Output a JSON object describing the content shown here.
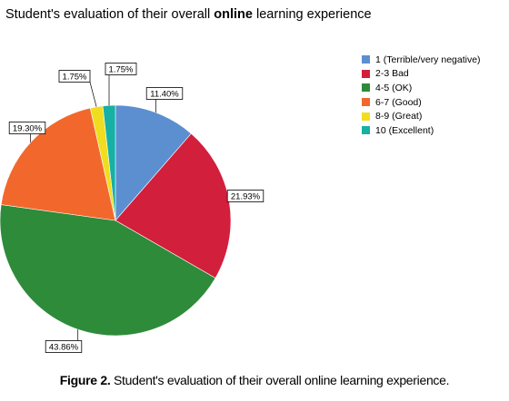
{
  "chart_data": {
    "type": "pie",
    "title_prefix": "Student's evaluation of their overall ",
    "title_bold": "online",
    "title_suffix": " learning experience",
    "categories": [
      "1 (Terrible/very negative)",
      "2-3 Bad",
      "4-5 (OK)",
      "6-7 (Good)",
      "8-9 (Great)",
      "10 (Excellent)"
    ],
    "values": [
      11.4,
      21.93,
      43.86,
      19.3,
      1.75,
      1.75
    ],
    "labels": [
      "11.40%",
      "21.93%",
      "43.86%",
      "19.30%",
      "1.75%",
      "1.75%"
    ],
    "colors": [
      "#5b8fd0",
      "#d21f3c",
      "#2e8b3a",
      "#f2682c",
      "#f0dd20",
      "#16b0a4"
    ],
    "legend_position": "top-right"
  },
  "caption": {
    "label": "Figure 2.",
    "text": " Student's evaluation of their overall online learning experience."
  }
}
